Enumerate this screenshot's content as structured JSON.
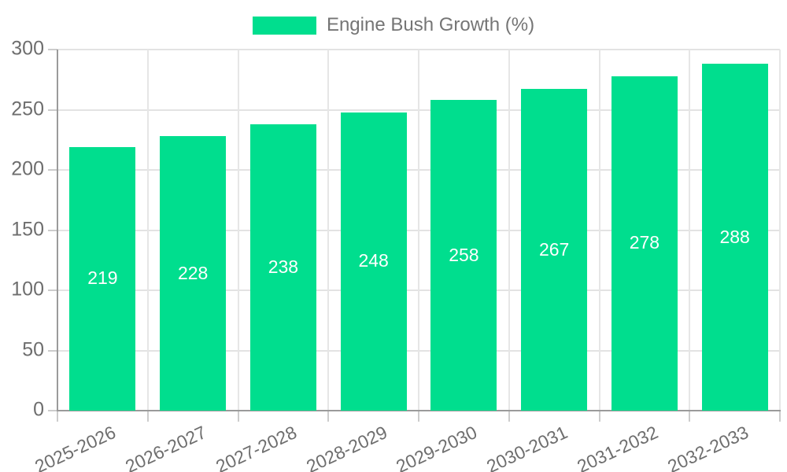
{
  "chart_data": {
    "type": "bar",
    "legend": {
      "label": "Engine Bush Growth (%)",
      "position": "top-center"
    },
    "categories": [
      "2025-2026",
      "2026-2027",
      "2027-2028",
      "2028-2029",
      "2029-2030",
      "2030-2031",
      "2031-2032",
      "2032-2033"
    ],
    "series": [
      {
        "name": "Engine Bush Growth (%)",
        "values": [
          219,
          228,
          238,
          248,
          258,
          267,
          278,
          288
        ]
      }
    ],
    "value_labels": [
      "219",
      "228",
      "238",
      "248",
      "258",
      "267",
      "278",
      "288"
    ],
    "xlabel": "",
    "ylabel": "",
    "ylim": [
      0,
      300
    ],
    "yticks": [
      0,
      50,
      100,
      150,
      200,
      250,
      300
    ],
    "ytick_labels": [
      "0",
      "50",
      "100",
      "150",
      "200",
      "250",
      "300"
    ],
    "grid": "on",
    "colors": {
      "bar": "#00DE8E",
      "value_text": "#ffffff",
      "axis_text": "#6e6e6e",
      "legend_text": "#757575",
      "gridline": "#e3e3e3",
      "axis_line": "#9a9a9a",
      "tick": "#cccccc",
      "background": "#ffffff"
    }
  }
}
